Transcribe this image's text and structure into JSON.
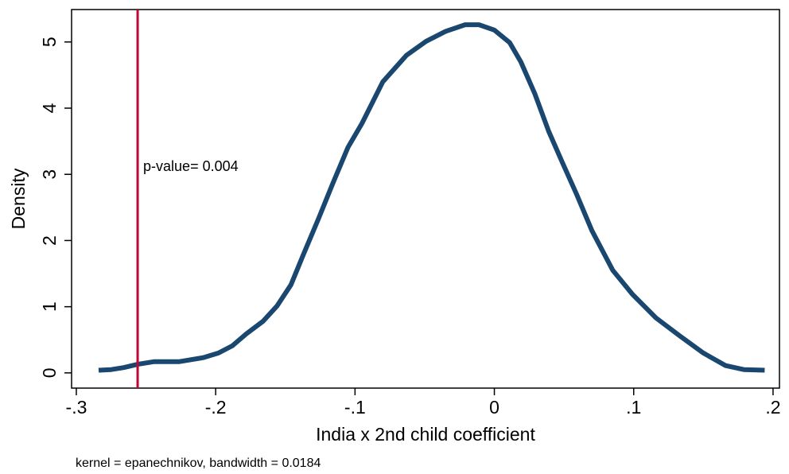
{
  "chart_data": {
    "type": "line",
    "x_label": "India x 2nd child coefficient",
    "y_label": "Density",
    "note": "kernel = epanechnikov, bandwidth = 0.0184",
    "annotation": "p-value= 0.004",
    "vline": -0.256,
    "vline_color": "#c10534",
    "x": [
      -0.284,
      -0.275,
      -0.266,
      -0.256,
      -0.244,
      -0.226,
      -0.209,
      -0.198,
      -0.188,
      -0.178,
      -0.166,
      -0.156,
      -0.146,
      -0.137,
      -0.126,
      -0.116,
      -0.105,
      -0.095,
      -0.08,
      -0.063,
      -0.049,
      -0.035,
      -0.021,
      -0.011,
      0.0,
      0.011,
      0.019,
      0.029,
      0.039,
      0.049,
      0.059,
      0.07,
      0.085,
      0.099,
      0.116,
      0.133,
      0.15,
      0.166,
      0.179,
      0.194
    ],
    "series": [
      {
        "color": "#1a476f",
        "values": [
          0.04,
          0.05,
          0.08,
          0.13,
          0.17,
          0.17,
          0.23,
          0.3,
          0.41,
          0.59,
          0.78,
          1.01,
          1.33,
          1.79,
          2.34,
          2.86,
          3.41,
          3.77,
          4.4,
          4.8,
          5.01,
          5.16,
          5.26,
          5.26,
          5.18,
          4.99,
          4.7,
          4.22,
          3.65,
          3.17,
          2.7,
          2.15,
          1.55,
          1.19,
          0.83,
          0.56,
          0.3,
          0.11,
          0.05,
          0.04
        ]
      }
    ],
    "xlim": [
      -0.3034,
      0.2046
    ],
    "ylim": [
      -0.23,
      5.49
    ],
    "xticks": [
      {
        "value": -0.3,
        "label": "-.3"
      },
      {
        "value": -0.2,
        "label": "-.2"
      },
      {
        "value": -0.1,
        "label": "-.1"
      },
      0,
      {
        "value": 0.1,
        "label": ".1"
      },
      {
        "value": 0.2,
        "label": ".2"
      }
    ],
    "yticks": [
      0,
      1,
      2,
      3,
      4,
      5
    ]
  }
}
